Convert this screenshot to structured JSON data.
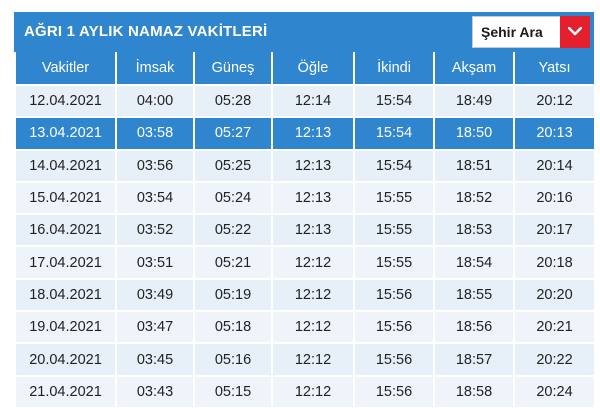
{
  "title": "AĞRI 1 AYLIK NAMAZ VAKİTLERİ",
  "city_select": {
    "label": "Şehir Ara",
    "icon": "chevron-down-icon"
  },
  "colors": {
    "header": "#2f86cf",
    "select_button": "#e5202e",
    "row": "#e7f0f8"
  },
  "table": {
    "columns": [
      "Vakitler",
      "İmsak",
      "Güneş",
      "Öğle",
      "İkindi",
      "Akşam",
      "Yatsı"
    ],
    "selected_row": 1,
    "rows": [
      [
        "12.04.2021",
        "04:00",
        "05:28",
        "12:14",
        "15:54",
        "18:49",
        "20:12"
      ],
      [
        "13.04.2021",
        "03:58",
        "05:27",
        "12:13",
        "15:54",
        "18:50",
        "20:13"
      ],
      [
        "14.04.2021",
        "03:56",
        "05:25",
        "12:13",
        "15:54",
        "18:51",
        "20:14"
      ],
      [
        "15.04.2021",
        "03:54",
        "05:24",
        "12:13",
        "15:55",
        "18:52",
        "20:16"
      ],
      [
        "16.04.2021",
        "03:52",
        "05:22",
        "12:13",
        "15:55",
        "18:53",
        "20:17"
      ],
      [
        "17.04.2021",
        "03:51",
        "05:21",
        "12:12",
        "15:55",
        "18:54",
        "20:18"
      ],
      [
        "18.04.2021",
        "03:49",
        "05:19",
        "12:12",
        "15:56",
        "18:55",
        "20:20"
      ],
      [
        "19.04.2021",
        "03:47",
        "05:18",
        "12:12",
        "15:56",
        "18:56",
        "20:21"
      ],
      [
        "20.04.2021",
        "03:45",
        "05:16",
        "12:12",
        "15:56",
        "18:57",
        "20:22"
      ],
      [
        "21.04.2021",
        "03:43",
        "05:15",
        "12:12",
        "15:56",
        "18:58",
        "20:24"
      ]
    ]
  }
}
